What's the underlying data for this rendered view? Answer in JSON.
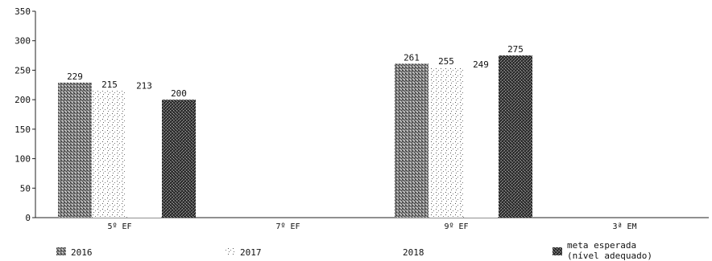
{
  "chart_data": {
    "type": "bar",
    "categories": [
      "5º EF",
      "7º EF",
      "9º EF",
      "3ª EM"
    ],
    "series": [
      {
        "name": "2016",
        "values": [
          229,
          null,
          261,
          null
        ],
        "color": "#6e6e6e",
        "pattern": "dense-dots"
      },
      {
        "name": "2017",
        "values": [
          215,
          null,
          255,
          null
        ],
        "color": "#bdbdbd",
        "pattern": "sparse-dots"
      },
      {
        "name": "2018",
        "values": [
          213,
          null,
          249,
          null
        ],
        "color": "#ffffff",
        "pattern": "none"
      },
      {
        "name": "meta esperada (nível adequado)",
        "values": [
          200,
          null,
          275,
          null
        ],
        "color": "#2a2a2a",
        "pattern": "dark-noise"
      }
    ],
    "data_labels": [
      [
        "229",
        null,
        "261",
        null
      ],
      [
        "215",
        null,
        "255",
        null
      ],
      [
        "213",
        null,
        "249",
        null
      ],
      [
        "200",
        null,
        "275",
        null
      ]
    ],
    "ylim": [
      0,
      350
    ],
    "yticks": [
      0,
      50,
      100,
      150,
      200,
      250,
      300,
      350
    ],
    "ytick_labels": [
      "0",
      "50",
      "100",
      "150",
      "200",
      "250",
      "300",
      "350"
    ],
    "title": "",
    "xlabel": "",
    "ylabel": "",
    "grid": false,
    "legend_position": "bottom"
  }
}
